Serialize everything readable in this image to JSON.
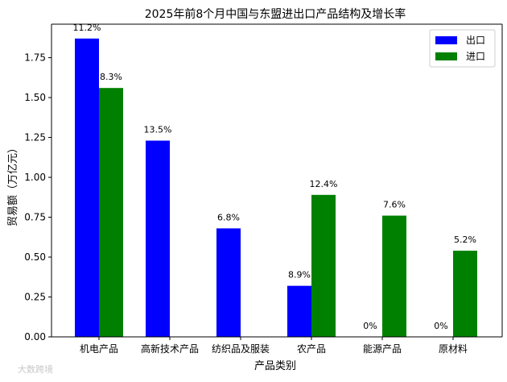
{
  "chart_data": {
    "type": "bar",
    "title": "2025年前8个月中国与东盟进出口产品结构及增长率",
    "xlabel": "产品类别",
    "ylabel": "贸易额（万亿元）",
    "categories": [
      "机电产品",
      "高新技术产品",
      "纺织品及服装",
      "农产品",
      "能源产品",
      "原材料"
    ],
    "series": [
      {
        "name": "出口",
        "color": "#0000ff",
        "values": [
          1.87,
          1.23,
          0.68,
          0.32,
          0,
          0
        ],
        "growth_labels": [
          "11.2%",
          "13.5%",
          "6.8%",
          "8.9%",
          "0%",
          "0%"
        ]
      },
      {
        "name": "进口",
        "color": "#008000",
        "values": [
          1.56,
          0,
          0,
          0.89,
          0.76,
          0.54
        ],
        "growth_labels": [
          "8.3%",
          "",
          "",
          "12.4%",
          "7.6%",
          "5.2%"
        ]
      }
    ],
    "ylim": [
      0,
      1.96
    ],
    "yticks": [
      0.0,
      0.25,
      0.5,
      0.75,
      1.0,
      1.25,
      1.5,
      1.75
    ],
    "ytick_labels": [
      "0.00",
      "0.25",
      "0.50",
      "0.75",
      "1.00",
      "1.25",
      "1.50",
      "1.75"
    ],
    "grid": false,
    "legend_position": "top-right"
  },
  "watermark": "大数跨境"
}
